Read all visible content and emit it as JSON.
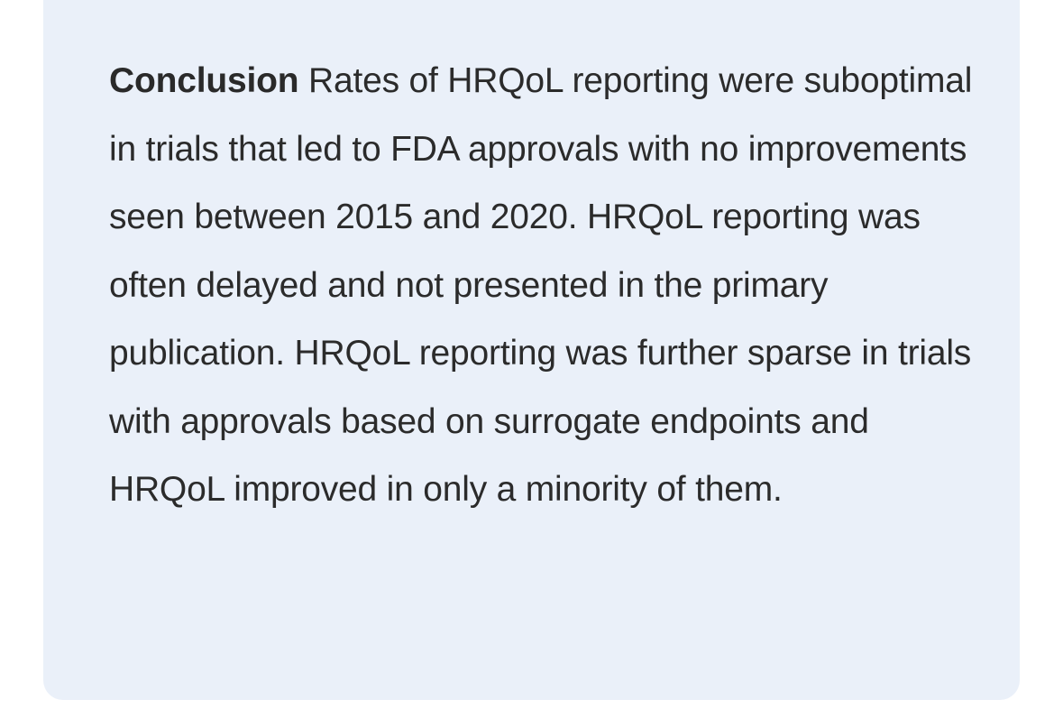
{
  "abstract": {
    "section_label": "Conclusion",
    "body": "Rates of HRQoL reporting were suboptimal in trials that led to FDA approvals with no improvements seen between 2015 and 2020. HRQoL reporting was often delayed and not presented in the primary publication. HRQoL reporting was further sparse in trials with approvals based on surrogate endpoints and HRQoL improved in only a minority of them."
  },
  "colors": {
    "card_background": "#eaf0f9",
    "text": "#2b2b2b"
  }
}
